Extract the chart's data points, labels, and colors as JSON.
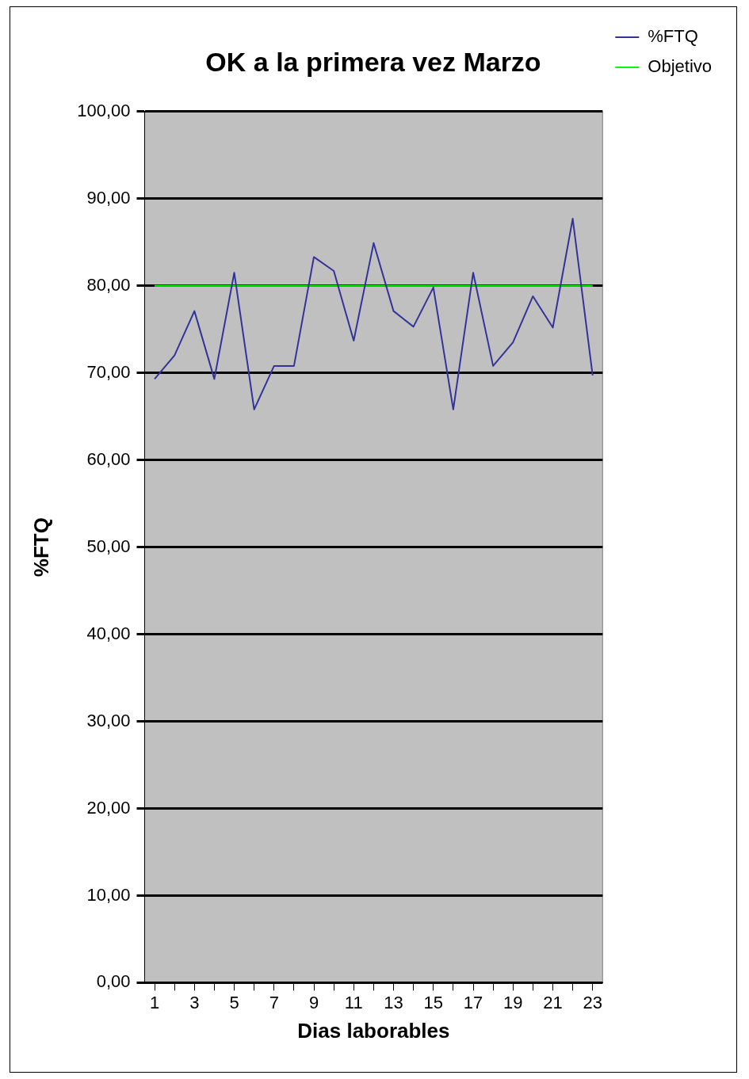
{
  "chart_data": {
    "type": "line",
    "title": "OK a la primera vez Marzo",
    "xlabel": "Dias laborables",
    "ylabel": "%FTQ",
    "x": [
      1,
      2,
      3,
      4,
      5,
      6,
      7,
      8,
      9,
      10,
      11,
      12,
      13,
      14,
      15,
      16,
      17,
      18,
      19,
      20,
      21,
      22,
      23
    ],
    "series": [
      {
        "name": "%FTQ",
        "color": "#333399",
        "values": [
          69.3,
          72.0,
          77.1,
          69.3,
          81.5,
          65.8,
          70.8,
          70.8,
          83.3,
          81.7,
          73.7,
          84.9,
          77.1,
          75.3,
          79.8,
          65.8,
          81.5,
          70.8,
          73.5,
          78.8,
          75.2,
          87.7,
          69.7
        ]
      },
      {
        "name": "Objetivo",
        "color": "#00ff00",
        "values": [
          80,
          80,
          80,
          80,
          80,
          80,
          80,
          80,
          80,
          80,
          80,
          80,
          80,
          80,
          80,
          80,
          80,
          80,
          80,
          80,
          80,
          80,
          80
        ]
      }
    ],
    "xlim": [
      0.5,
      23.5
    ],
    "xticks": [
      1,
      {
        "value": 2,
        "label": null
      },
      3,
      {
        "value": 4,
        "label": null
      },
      5,
      {
        "value": 6,
        "label": null
      },
      7,
      {
        "value": 8,
        "label": null
      },
      9,
      {
        "value": 10,
        "label": null
      },
      11,
      {
        "value": 12,
        "label": null
      },
      13,
      {
        "value": 14,
        "label": null
      },
      15,
      {
        "value": 16,
        "label": null
      },
      17,
      {
        "value": 18,
        "label": null
      },
      19,
      {
        "value": 20,
        "label": null
      },
      21,
      {
        "value": 22,
        "label": null
      },
      23
    ],
    "ylim": [
      0,
      100
    ],
    "yticks": [
      {
        "value": 0,
        "label": "0,00"
      },
      {
        "value": 10,
        "label": "10,00"
      },
      {
        "value": 20,
        "label": "20,00"
      },
      {
        "value": 30,
        "label": "30,00"
      },
      {
        "value": 40,
        "label": "40,00"
      },
      {
        "value": 50,
        "label": "50,00"
      },
      {
        "value": 60,
        "label": "60,00"
      },
      {
        "value": 70,
        "label": "70,00"
      },
      {
        "value": 80,
        "label": "80,00"
      },
      {
        "value": 90,
        "label": "90,00"
      },
      {
        "value": 100,
        "label": "100,00"
      }
    ],
    "grid": "y",
    "legend": "right",
    "marker": "none"
  }
}
